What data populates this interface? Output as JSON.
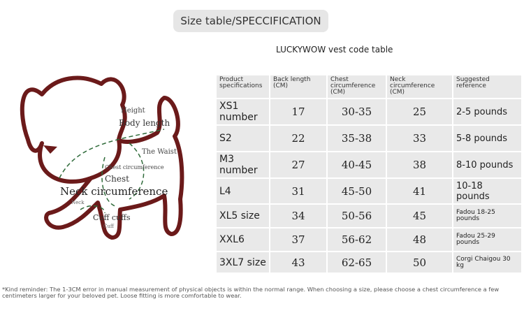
{
  "header": {
    "title": "Size table/SPECCIFICATION"
  },
  "diagram": {
    "labels": [
      "Height",
      "Body length",
      "The Waist",
      "Chest circumference",
      "Chest",
      "Neck circumference",
      "Neck",
      "Cuff cuffs",
      "Cuff"
    ]
  },
  "table": {
    "caption": "LUCKYWOW vest code table",
    "columns": [
      "Product specifications",
      "Back length (CM)",
      "Chest circumference (CM)",
      "Neck circumference (CM)",
      "Suggested reference"
    ],
    "rows": [
      [
        "XS1 number",
        "17",
        "30-35",
        "25",
        "2-5 pounds"
      ],
      [
        "S2",
        "22",
        "35-38",
        "33",
        "5-8 pounds"
      ],
      [
        "M3 number",
        "27",
        "40-45",
        "38",
        "8-10 pounds"
      ],
      [
        "L4",
        "31",
        "45-50",
        "41",
        "10-18 pounds"
      ],
      [
        "XL5 size",
        "34",
        "50-56",
        "45",
        "Fadou 18-25 pounds"
      ],
      [
        "XXL6",
        "37",
        "56-62",
        "48",
        "Fadou 25-29 pounds"
      ],
      [
        "3XL7 size",
        "43",
        "62-65",
        "50",
        "Corgi Chaigou 30 kg"
      ]
    ]
  },
  "footnote": "*Kind reminder: The 1-3CM error in manual measurement of physical objects is within the normal range. When choosing a size, please choose a chest circumference a few centimeters larger for your beloved pet. Loose fitting is more comfortable to wear."
}
